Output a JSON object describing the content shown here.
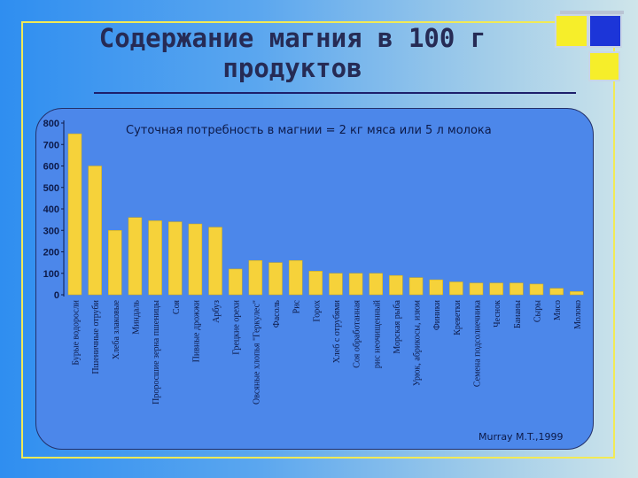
{
  "slide": {
    "title_line1": "Содержание магния в 100 г",
    "title_line2": "продуктов",
    "note": "Суточная потребность в магнии = 2 кг мяса или 5 л молока",
    "source": "Murray M.T.,1999"
  },
  "colors": {
    "bar": "#f6d23a",
    "bar_edge": "#c9a71c",
    "text": "#0d1a48",
    "panel": "#4c87ea"
  },
  "chart_data": {
    "type": "bar",
    "title": "",
    "xlabel": "",
    "ylabel": "",
    "ylim": [
      0,
      800
    ],
    "yticks": [
      0,
      100,
      200,
      300,
      400,
      500,
      600,
      700,
      800
    ],
    "yticklabels": [
      "0",
      "100",
      "200",
      "300",
      "400",
      "500",
      "600",
      "700",
      "800"
    ],
    "categories": [
      "Бурые водоросли",
      "Пшеничные отруби",
      "Хлеба злаковые",
      "Миндаль",
      "Проросшие зерна пшеницы",
      "Соя",
      "Пивные дрожжи",
      "Арбуз",
      "Грецкие орехи",
      "Овсяные хлопья \"Геркулес\"",
      "Фасоль",
      "Рис",
      "Горох",
      "Хлеб с отрубями",
      "Соя обработанная",
      "рис неочищенный",
      "Морская рыба",
      "Урюк, абрикосы, изюм",
      "Финики",
      "Креветки",
      "Семена подсолнечника",
      "Чеснок",
      "Бананы",
      "Сыры",
      "Мясо",
      "Молоко"
    ],
    "values": [
      750,
      600,
      300,
      360,
      345,
      340,
      330,
      315,
      120,
      160,
      150,
      160,
      110,
      100,
      100,
      100,
      90,
      80,
      70,
      60,
      55,
      55,
      55,
      50,
      30,
      15
    ]
  }
}
